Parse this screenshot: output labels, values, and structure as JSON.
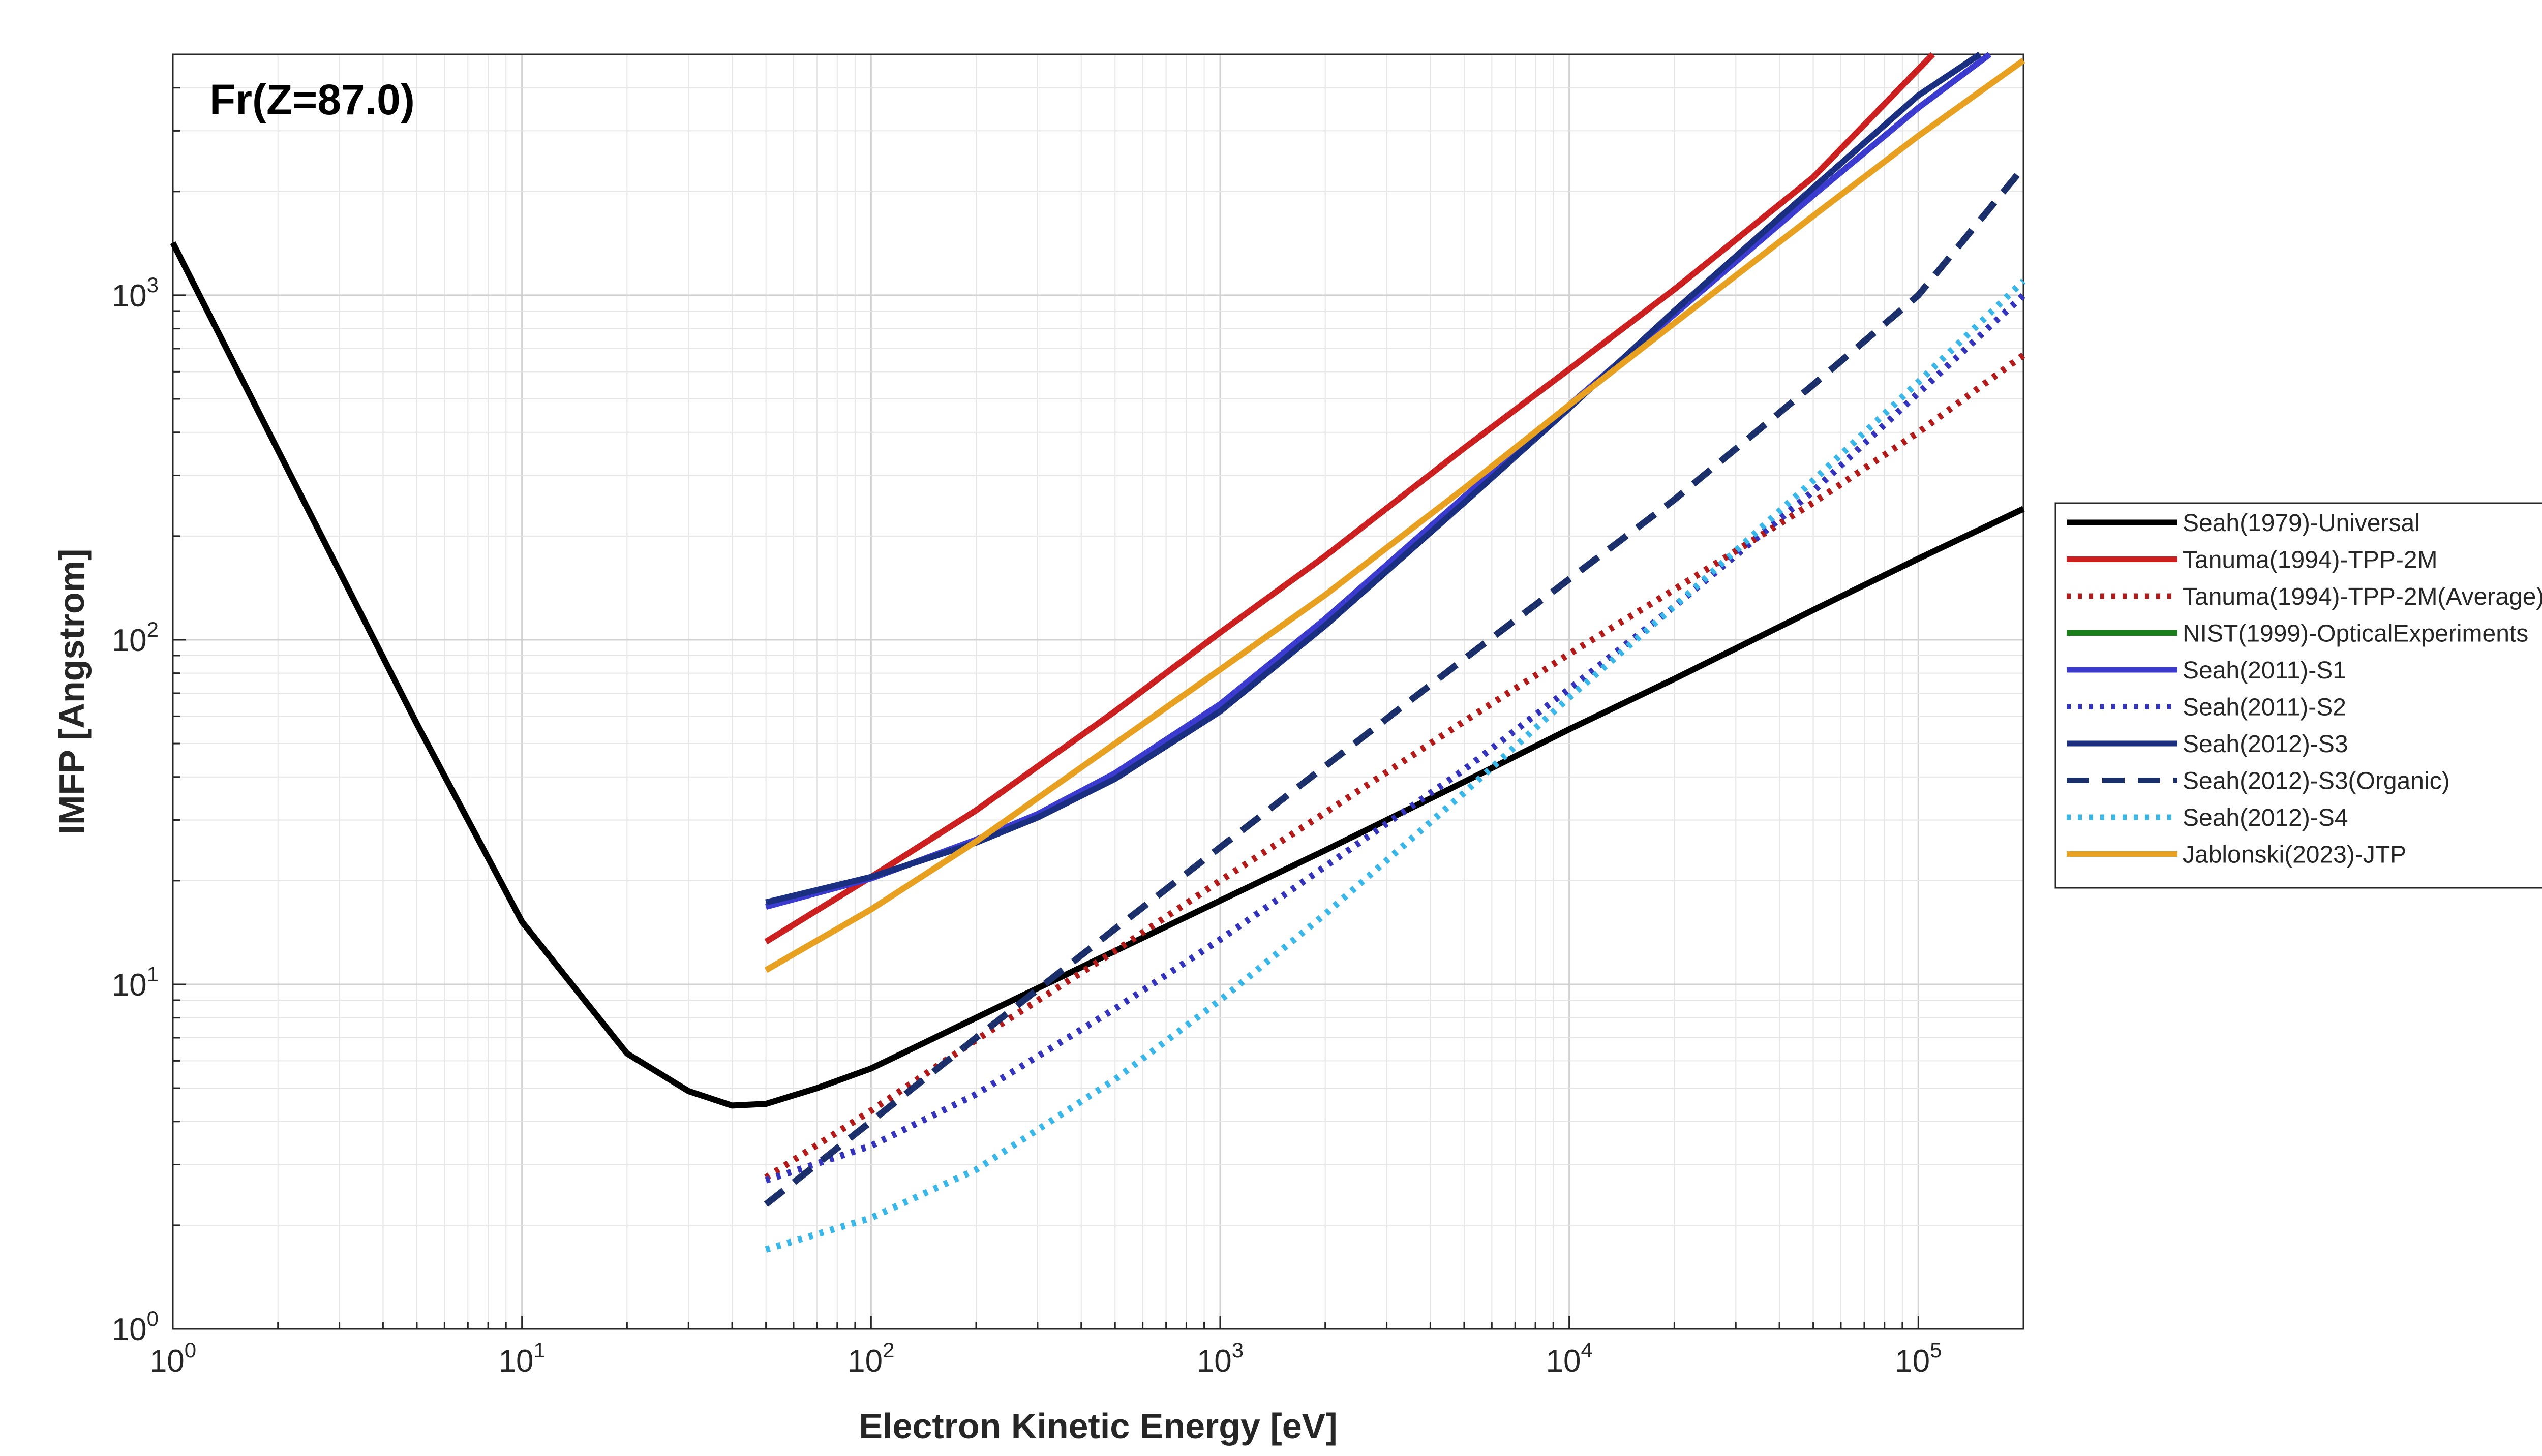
{
  "chart_data": {
    "type": "line",
    "title": "Fr(Z=87.0)",
    "xlabel": "Electron Kinetic Energy [eV]",
    "ylabel": "IMFP [Angstrom]",
    "xscale": "log",
    "yscale": "log",
    "xlim": [
      1,
      200000
    ],
    "ylim": [
      1,
      5000
    ],
    "grid": "on (major and minor)",
    "legend_position": "right",
    "x_ticks": [
      {
        "base": "10",
        "exp": "0"
      },
      {
        "base": "10",
        "exp": "1"
      },
      {
        "base": "10",
        "exp": "2"
      },
      {
        "base": "10",
        "exp": "3"
      },
      {
        "base": "10",
        "exp": "4"
      },
      {
        "base": "10",
        "exp": "5"
      }
    ],
    "y_ticks": [
      {
        "base": "10",
        "exp": "0"
      },
      {
        "base": "10",
        "exp": "1"
      },
      {
        "base": "10",
        "exp": "2"
      },
      {
        "base": "10",
        "exp": "3"
      }
    ],
    "series": [
      {
        "name": "Seah(1979)-Universal",
        "color": "#000000",
        "style": "solid",
        "x": [
          1,
          2,
          5,
          10,
          20,
          30,
          40,
          50,
          70,
          100,
          200,
          500,
          1000,
          2000,
          5000,
          10000,
          20000,
          50000,
          100000,
          200000
        ],
        "y": [
          1420,
          355,
          57,
          15.2,
          6.3,
          4.9,
          4.45,
          4.5,
          5.0,
          5.7,
          8.0,
          12.5,
          17.5,
          24.5,
          38.7,
          55,
          77,
          122,
          172,
          240
        ]
      },
      {
        "name": "Tanuma(1994)-TPP-2M",
        "color": "#cc1f1f",
        "style": "solid",
        "x": [
          50,
          100,
          200,
          500,
          1000,
          2000,
          5000,
          10000,
          20000,
          50000,
          110000
        ],
        "y": [
          13.3,
          20.5,
          32,
          62,
          105,
          175,
          360,
          610,
          1040,
          2200,
          5000
        ]
      },
      {
        "name": "Tanuma(1994)-TPP-2M(Average)",
        "color": "#b31b1b",
        "style": "dotted",
        "x": [
          50,
          100,
          200,
          500,
          1000,
          2000,
          5000,
          10000,
          20000,
          50000,
          100000,
          200000
        ],
        "y": [
          2.75,
          4.3,
          6.9,
          12.5,
          20,
          31.5,
          58,
          91,
          140,
          250,
          400,
          670
        ]
      },
      {
        "name": "NIST(1999)-OpticalExperiments",
        "color": "#1a7f1a",
        "style": "solid",
        "x": [],
        "y": []
      },
      {
        "name": "Seah(2011)-S1",
        "color": "#3b3bcf",
        "style": "solid",
        "x": [
          50,
          100,
          200,
          300,
          500,
          1000,
          2000,
          5000,
          10000,
          20000,
          50000,
          100000,
          160000
        ],
        "y": [
          16.8,
          20.3,
          26.3,
          31.2,
          41,
          65,
          115,
          260,
          480,
          880,
          1950,
          3500,
          5000
        ]
      },
      {
        "name": "Seah(2011)-S2",
        "color": "#3333bb",
        "style": "dotted",
        "x": [
          50,
          100,
          200,
          500,
          1000,
          2000,
          5000,
          10000,
          20000,
          50000,
          100000,
          200000
        ],
        "y": [
          2.7,
          3.4,
          4.8,
          8.5,
          13.5,
          22,
          42,
          72,
          125,
          270,
          520,
          1000
        ]
      },
      {
        "name": "Seah(2012)-S3",
        "color": "#1b2f80",
        "style": "solid",
        "x": [
          50,
          100,
          200,
          300,
          500,
          1000,
          2000,
          5000,
          10000,
          20000,
          50000,
          100000,
          150000
        ],
        "y": [
          17.3,
          20.5,
          25.8,
          30.5,
          39.5,
          62,
          110,
          250,
          470,
          900,
          2050,
          3800,
          5000
        ]
      },
      {
        "name": "Seah(2012)-S3(Organic)",
        "color": "#1b2f6b",
        "style": "dashed",
        "x": [
          50,
          100,
          200,
          500,
          1000,
          2000,
          5000,
          10000,
          20000,
          50000,
          100000,
          200000
        ],
        "y": [
          2.3,
          4.0,
          7.0,
          14.5,
          25,
          43,
          88,
          150,
          255,
          550,
          1000,
          2350
        ]
      },
      {
        "name": "Seah(2012)-S4",
        "color": "#38b7e8",
        "style": "dotted",
        "x": [
          50,
          100,
          200,
          500,
          1000,
          2000,
          5000,
          10000,
          20000,
          50000,
          100000,
          200000
        ],
        "y": [
          1.7,
          2.1,
          2.9,
          5.3,
          9.0,
          16,
          36,
          68,
          125,
          290,
          560,
          1100
        ]
      },
      {
        "name": "Jablonski(2023)-JTP",
        "color": "#e8a020",
        "style": "solid",
        "x": [
          50,
          100,
          200,
          500,
          1000,
          2000,
          5000,
          10000,
          20000,
          50000,
          100000,
          200000
        ],
        "y": [
          11,
          16.5,
          26,
          50,
          82,
          135,
          275,
          480,
          830,
          1700,
          2900,
          4800
        ]
      }
    ]
  }
}
